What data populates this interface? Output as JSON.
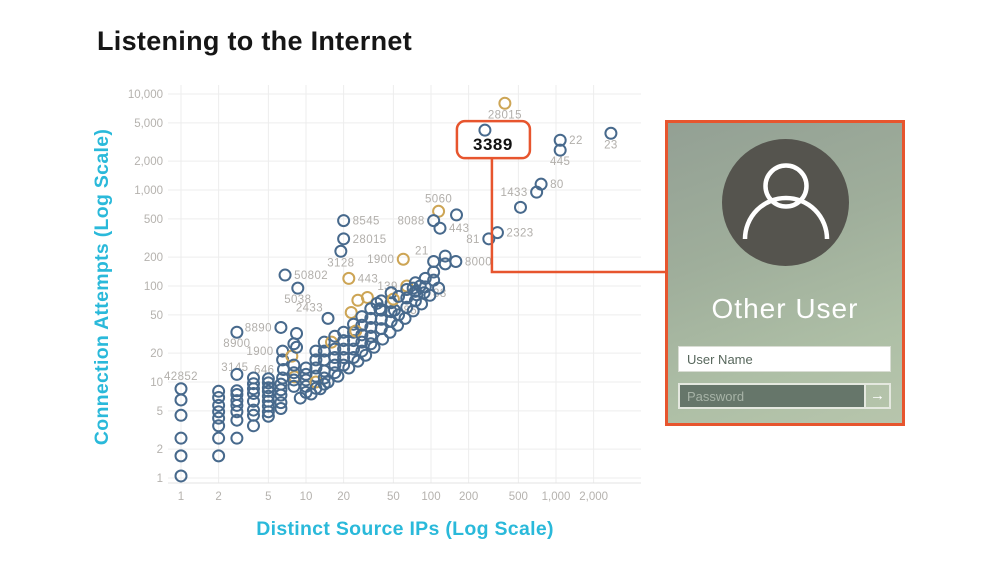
{
  "slide": {
    "title": "Listening to the Internet"
  },
  "colors": {
    "accent_orange": "#e7552e",
    "axis_cyan": "#2ab9da",
    "point_blue": "#47698c",
    "point_orange": "#cda555",
    "grid": "#ededed",
    "tick_text": "#b5b2ae"
  },
  "chart_data": {
    "type": "scatter",
    "xlabel": "Distinct Source IPs (Log Scale)",
    "ylabel": "Connection Attempts (Log Scale)",
    "x_ticks": [
      {
        "v": 1,
        "label": "1"
      },
      {
        "v": 2,
        "label": "2"
      },
      {
        "v": 5,
        "label": "5"
      },
      {
        "v": 10,
        "label": "10"
      },
      {
        "v": 20,
        "label": "20"
      },
      {
        "v": 50,
        "label": "50"
      },
      {
        "v": 100,
        "label": "100"
      },
      {
        "v": 200,
        "label": "200"
      },
      {
        "v": 500,
        "label": "500"
      },
      {
        "v": 1000,
        "label": "1,000"
      },
      {
        "v": 2000,
        "label": "2,000"
      }
    ],
    "y_ticks": [
      {
        "v": 1,
        "label": "1"
      },
      {
        "v": 2,
        "label": "2"
      },
      {
        "v": 5,
        "label": "5"
      },
      {
        "v": 10,
        "label": "10"
      },
      {
        "v": 20,
        "label": "20"
      },
      {
        "v": 50,
        "label": "50"
      },
      {
        "v": 100,
        "label": "100"
      },
      {
        "v": 200,
        "label": "200"
      },
      {
        "v": 500,
        "label": "500"
      },
      {
        "v": 1000,
        "label": "1,000"
      },
      {
        "v": 2000,
        "label": "2,000"
      },
      {
        "v": 5000,
        "label": "5,000"
      },
      {
        "v": 10000,
        "label": "10,000"
      }
    ],
    "x_range": [
      1,
      3000
    ],
    "y_range": [
      1,
      13000
    ],
    "grid": true,
    "highlight": {
      "label": "3389"
    },
    "points": [
      [
        390,
        8000,
        "o",
        "28015",
        "b"
      ],
      [
        270,
        4200,
        "b",
        "3389",
        "hl"
      ],
      [
        1080,
        3300,
        "b",
        "22",
        "r"
      ],
      [
        2750,
        3900,
        "b",
        "23",
        "b"
      ],
      [
        1080,
        2600,
        "b",
        "445",
        "b"
      ],
      [
        760,
        1150,
        "b",
        "80",
        "r"
      ],
      [
        700,
        950,
        "b",
        "1433",
        "l"
      ],
      [
        520,
        660,
        "b"
      ],
      [
        340,
        360,
        "b",
        "2323",
        "r"
      ],
      [
        290,
        310,
        "b",
        "81",
        "l"
      ],
      [
        115,
        600,
        "o",
        "5060",
        "a"
      ],
      [
        105,
        480,
        "b",
        "8088",
        "l"
      ],
      [
        160,
        550,
        "b"
      ],
      [
        118,
        400,
        "b",
        "443",
        "r"
      ],
      [
        20,
        480,
        "b",
        "8545",
        "r"
      ],
      [
        20,
        310,
        "b",
        "28015",
        "r"
      ],
      [
        19,
        230,
        "b",
        "3128",
        "b"
      ],
      [
        60,
        190,
        "o",
        "1900",
        "l"
      ],
      [
        105,
        180,
        "b",
        "21",
        "al"
      ],
      [
        158,
        180,
        "b",
        "8000",
        "r"
      ],
      [
        6.8,
        130,
        "b",
        "50802",
        "r"
      ],
      [
        22,
        120,
        "o",
        "443",
        "r"
      ],
      [
        64,
        100,
        "o",
        "139",
        "l"
      ],
      [
        88,
        85,
        "b",
        "88",
        "r"
      ],
      [
        51,
        56,
        "b",
        "85",
        "r"
      ],
      [
        8.6,
        95,
        "b",
        "5038",
        "b"
      ],
      [
        15,
        46,
        "b",
        "2433",
        "al"
      ],
      [
        6.3,
        37,
        "b",
        "8890",
        "l"
      ],
      [
        2.8,
        33,
        "b",
        "8900",
        "b"
      ],
      [
        6.5,
        21,
        "b",
        "1900",
        "l"
      ],
      [
        6.6,
        13.5,
        "b",
        "646",
        "l"
      ],
      [
        3.8,
        11,
        "b",
        "3145",
        "al"
      ],
      [
        1,
        8.5,
        "b",
        "42852",
        "a"
      ],
      [
        1,
        6.5,
        "b"
      ],
      [
        1,
        4.5,
        "b"
      ],
      [
        1,
        2.6,
        "b"
      ],
      [
        1,
        1.7,
        "b"
      ],
      [
        1,
        1.05,
        "b"
      ],
      [
        2,
        8,
        "b"
      ],
      [
        2,
        6.9,
        "b"
      ],
      [
        2,
        5.7,
        "b"
      ],
      [
        2,
        4.9,
        "b"
      ],
      [
        2,
        4.2,
        "b"
      ],
      [
        2,
        3.5,
        "b"
      ],
      [
        2,
        2.6,
        "b"
      ],
      [
        2,
        1.7,
        "b"
      ],
      [
        2.8,
        12,
        "b"
      ],
      [
        2.8,
        8.1,
        "b"
      ],
      [
        2.8,
        7.4,
        "b"
      ],
      [
        2.8,
        6.4,
        "b"
      ],
      [
        2.8,
        5.7,
        "b"
      ],
      [
        2.8,
        4.9,
        "b"
      ],
      [
        2.8,
        4,
        "b"
      ],
      [
        2.8,
        2.6,
        "b"
      ],
      [
        3.8,
        9.6,
        "b"
      ],
      [
        3.8,
        8.5,
        "b"
      ],
      [
        3.8,
        7.6,
        "b"
      ],
      [
        3.8,
        6.3,
        "b"
      ],
      [
        3.8,
        5.1,
        "b"
      ],
      [
        3.8,
        4.5,
        "b"
      ],
      [
        3.8,
        3.5,
        "b"
      ],
      [
        5,
        10.8,
        "b"
      ],
      [
        5,
        9.8,
        "b"
      ],
      [
        5,
        8.7,
        "b"
      ],
      [
        5,
        8,
        "b"
      ],
      [
        5,
        7.1,
        "b"
      ],
      [
        5,
        6.3,
        "b"
      ],
      [
        5,
        5.6,
        "b"
      ],
      [
        5,
        4.9,
        "b"
      ],
      [
        5,
        4.4,
        "b"
      ],
      [
        6.3,
        9.5,
        "b"
      ],
      [
        6.3,
        8.3,
        "b"
      ],
      [
        6.3,
        7.3,
        "b"
      ],
      [
        6.3,
        6.1,
        "b"
      ],
      [
        6.3,
        5.3,
        "b"
      ],
      [
        6.5,
        17,
        "b"
      ],
      [
        6.5,
        11,
        "b"
      ],
      [
        7.7,
        18.6,
        "o"
      ],
      [
        8.1,
        11.3,
        "o"
      ],
      [
        8,
        25,
        "b"
      ],
      [
        8,
        15,
        "b"
      ],
      [
        8,
        12.5,
        "b"
      ],
      [
        8,
        10.5,
        "b"
      ],
      [
        8,
        9,
        "b"
      ],
      [
        8.4,
        32,
        "b"
      ],
      [
        8.4,
        23,
        "b"
      ],
      [
        9,
        6.8,
        "b"
      ],
      [
        10,
        14,
        "b"
      ],
      [
        10,
        12,
        "b"
      ],
      [
        10,
        10.5,
        "b"
      ],
      [
        10,
        9,
        "b"
      ],
      [
        10,
        7.8,
        "b"
      ],
      [
        11,
        7.5,
        "b"
      ],
      [
        12,
        21,
        "b"
      ],
      [
        12,
        17,
        "b"
      ],
      [
        12,
        14,
        "b"
      ],
      [
        12,
        11.5,
        "b"
      ],
      [
        12,
        10,
        "o"
      ],
      [
        12,
        8.6,
        "b"
      ],
      [
        13,
        8.5,
        "b"
      ],
      [
        14,
        26,
        "b"
      ],
      [
        14,
        21,
        "b"
      ],
      [
        14,
        17,
        "b"
      ],
      [
        14,
        13,
        "b"
      ],
      [
        14,
        11,
        "b"
      ],
      [
        14,
        9.5,
        "b"
      ],
      [
        15,
        10,
        "b"
      ],
      [
        16,
        26,
        "o"
      ],
      [
        17,
        30,
        "b"
      ],
      [
        17,
        22,
        "b"
      ],
      [
        17,
        18,
        "b"
      ],
      [
        17,
        15,
        "b"
      ],
      [
        17,
        12.5,
        "b"
      ],
      [
        18,
        11.5,
        "b"
      ],
      [
        20,
        33,
        "b"
      ],
      [
        20,
        27,
        "b"
      ],
      [
        20,
        22,
        "b"
      ],
      [
        20,
        18,
        "b"
      ],
      [
        20,
        15,
        "b"
      ],
      [
        22,
        14,
        "b"
      ],
      [
        23,
        53,
        "o"
      ],
      [
        24,
        40,
        "b"
      ],
      [
        24,
        33,
        "b"
      ],
      [
        24,
        27,
        "b"
      ],
      [
        24,
        22,
        "b"
      ],
      [
        24,
        18,
        "b"
      ],
      [
        25,
        34,
        "o"
      ],
      [
        26,
        71,
        "o"
      ],
      [
        26,
        16.5,
        "b"
      ],
      [
        28,
        48,
        "b"
      ],
      [
        28,
        39,
        "b"
      ],
      [
        28,
        31,
        "b"
      ],
      [
        28,
        26,
        "b"
      ],
      [
        28,
        21,
        "b"
      ],
      [
        30,
        19,
        "b"
      ],
      [
        31,
        76,
        "o"
      ],
      [
        33,
        58,
        "b"
      ],
      [
        33,
        46,
        "b"
      ],
      [
        33,
        37,
        "b"
      ],
      [
        33,
        30,
        "b"
      ],
      [
        33,
        25,
        "b"
      ],
      [
        35,
        23,
        "b"
      ],
      [
        37,
        66,
        "b"
      ],
      [
        39,
        58,
        "b"
      ],
      [
        40,
        70,
        "b"
      ],
      [
        40,
        56,
        "b"
      ],
      [
        40,
        45,
        "b"
      ],
      [
        40,
        36,
        "b"
      ],
      [
        41,
        28,
        "b"
      ],
      [
        47,
        33,
        "b"
      ],
      [
        48,
        85,
        "b"
      ],
      [
        48,
        67,
        "b"
      ],
      [
        48,
        54,
        "b"
      ],
      [
        48,
        43,
        "b"
      ],
      [
        50,
        73,
        "o"
      ],
      [
        54,
        39,
        "b"
      ],
      [
        55,
        78,
        "b"
      ],
      [
        55,
        50,
        "b"
      ],
      [
        62,
        46,
        "b"
      ],
      [
        64,
        92,
        "b"
      ],
      [
        64,
        75,
        "b"
      ],
      [
        64,
        60,
        "b"
      ],
      [
        72,
        95,
        "b"
      ],
      [
        72,
        55,
        "b"
      ],
      [
        75,
        108,
        "b"
      ],
      [
        75,
        88,
        "b"
      ],
      [
        75,
        70,
        "b"
      ],
      [
        77,
        81,
        "b"
      ],
      [
        82,
        100,
        "b"
      ],
      [
        84,
        65,
        "b"
      ],
      [
        90,
        120,
        "b"
      ],
      [
        90,
        98,
        "b"
      ],
      [
        98,
        80,
        "b"
      ],
      [
        105,
        140,
        "b"
      ],
      [
        105,
        115,
        "b"
      ],
      [
        115,
        95,
        "b"
      ],
      [
        130,
        205,
        "b"
      ],
      [
        130,
        170,
        "b"
      ]
    ]
  },
  "login_panel": {
    "title": "Other User",
    "username_placeholder": "User Name",
    "password_placeholder": "Password",
    "submit_glyph": "→"
  }
}
